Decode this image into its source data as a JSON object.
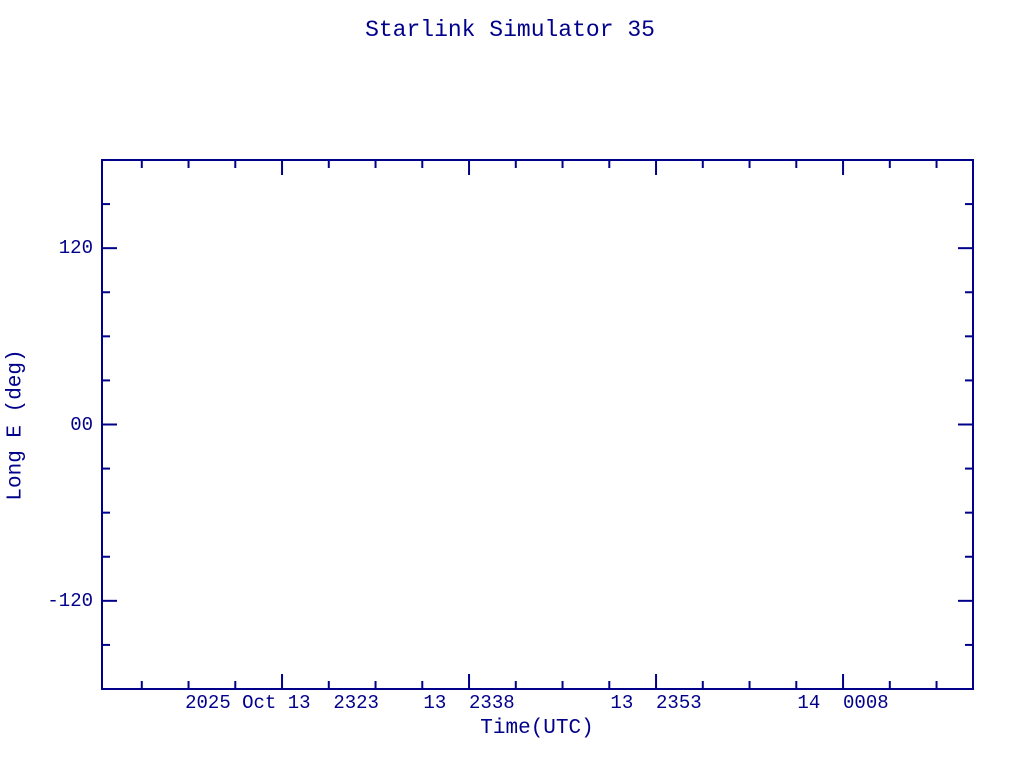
{
  "chart_data": {
    "type": "scatter",
    "title": "Starlink Simulator 35",
    "xlabel": "Time(UTC)",
    "ylabel": "Long E (deg)",
    "series": [],
    "x_axis": {
      "tick_labels": [
        "2025 Oct 13  2323",
        "13  2338",
        "13  2353",
        "14  0008"
      ],
      "major_fracs": [
        0.2067,
        0.4214,
        0.636,
        0.8507
      ],
      "minor_divisions": 4,
      "minor_extend_before": 3,
      "minor_extend_after": 2
    },
    "y_axis": {
      "range": [
        -180,
        180
      ],
      "major_ticks": [
        {
          "value": 120,
          "label": "120"
        },
        {
          "value": 0,
          "label": "00"
        },
        {
          "value": -120,
          "label": "-120"
        }
      ],
      "minor_step": 30
    },
    "color": "#00008B",
    "background": "#ffffff",
    "grid": false,
    "legend": false
  }
}
